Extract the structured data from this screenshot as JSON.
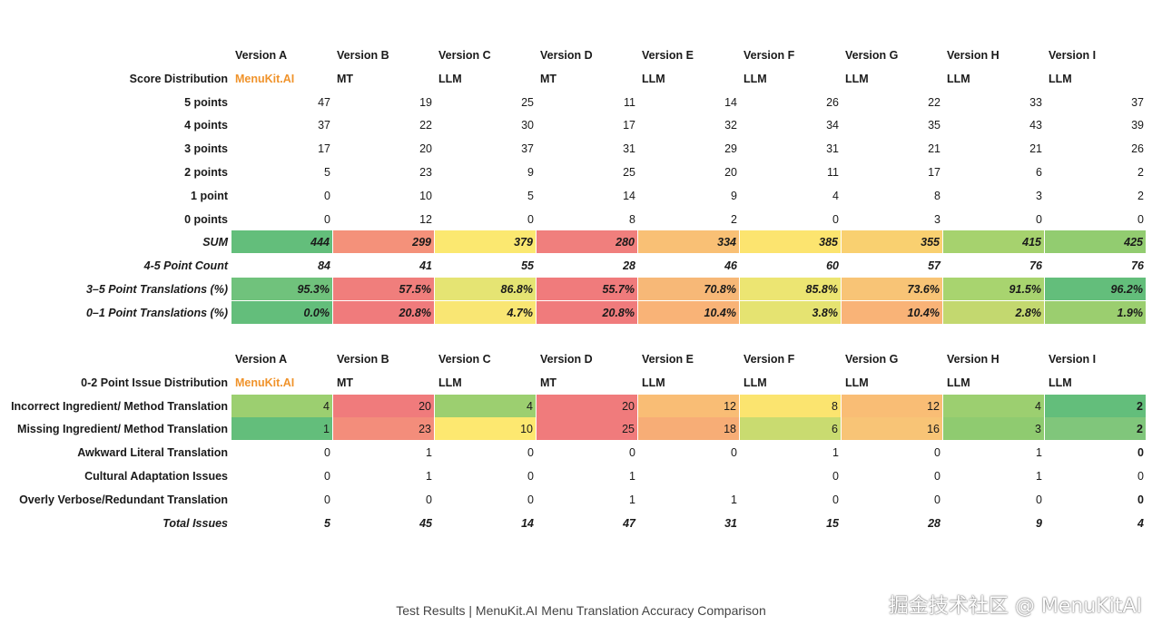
{
  "table1": {
    "versions": [
      "Version A",
      "Version B",
      "Version C",
      "Version D",
      "Version E",
      "Version F",
      "Version G",
      "Version H",
      "Version I"
    ],
    "types_label": "Score Distribution",
    "types": [
      "MenuKit.AI",
      "MT",
      "LLM",
      "MT",
      "LLM",
      "LLM",
      "LLM",
      "LLM",
      "LLM"
    ],
    "rows": [
      {
        "label": "5 points",
        "values": [
          "47",
          "19",
          "25",
          "11",
          "14",
          "26",
          "22",
          "33",
          "37"
        ]
      },
      {
        "label": "4 points",
        "values": [
          "37",
          "22",
          "30",
          "17",
          "32",
          "34",
          "35",
          "43",
          "39"
        ]
      },
      {
        "label": "3 points",
        "values": [
          "17",
          "20",
          "37",
          "31",
          "29",
          "31",
          "21",
          "21",
          "26"
        ]
      },
      {
        "label": "2 points",
        "values": [
          "5",
          "23",
          "9",
          "25",
          "20",
          "11",
          "17",
          "6",
          "2"
        ]
      },
      {
        "label": "1 point",
        "values": [
          "0",
          "10",
          "5",
          "14",
          "9",
          "4",
          "8",
          "3",
          "2"
        ]
      },
      {
        "label": "0 points",
        "values": [
          "0",
          "12",
          "0",
          "8",
          "2",
          "0",
          "3",
          "0",
          "0"
        ]
      },
      {
        "label": "SUM",
        "italic": true,
        "bold_values": true,
        "values": [
          "444",
          "299",
          "379",
          "280",
          "334",
          "385",
          "355",
          "415",
          "425"
        ],
        "colors": [
          "#63be7b",
          "#f4917a",
          "#fbe870",
          "#f07f7d",
          "#f9c075",
          "#fce46f",
          "#f9d070",
          "#a6d26e",
          "#92cc70"
        ]
      },
      {
        "label": "4-5 Point Count",
        "italic": true,
        "bold_values": true,
        "values": [
          "84",
          "41",
          "55",
          "28",
          "46",
          "60",
          "57",
          "76",
          "76"
        ]
      },
      {
        "label": "3–5 Point Translations (%)",
        "italic": true,
        "bold_values": true,
        "values": [
          "95.3%",
          "57.5%",
          "86.8%",
          "55.7%",
          "70.8%",
          "85.8%",
          "73.6%",
          "91.5%",
          "96.2%"
        ],
        "colors": [
          "#70c27c",
          "#f07e7c",
          "#e5e473",
          "#f07b7c",
          "#f7b877",
          "#ece572",
          "#f8c476",
          "#a8d46f",
          "#63be7b"
        ]
      },
      {
        "label": "0–1 Point Translations (%)",
        "italic": true,
        "bold_values": true,
        "values": [
          "0.0%",
          "20.8%",
          "4.7%",
          "20.8%",
          "10.4%",
          "3.8%",
          "10.4%",
          "2.8%",
          "1.9%"
        ],
        "colors": [
          "#63be7b",
          "#f07b7c",
          "#f9e673",
          "#f07b7c",
          "#f9b377",
          "#e5e371",
          "#f9b377",
          "#c3d86f",
          "#9bce6f"
        ]
      }
    ]
  },
  "table2": {
    "versions": [
      "Version A",
      "Version B",
      "Version C",
      "Version D",
      "Version E",
      "Version F",
      "Version G",
      "Version H",
      "Version I"
    ],
    "types_label": "0-2 Point Issue Distribution",
    "types": [
      "MenuKit.AI",
      "MT",
      "LLM",
      "MT",
      "LLM",
      "LLM",
      "LLM",
      "LLM",
      "LLM"
    ],
    "rows": [
      {
        "label": "Incorrect Ingredient/ Method Translation",
        "values": [
          "4",
          "20",
          "4",
          "20",
          "12",
          "8",
          "12",
          "4",
          "2"
        ],
        "colors": [
          "#9ccf70",
          "#f07b7c",
          "#9ccf70",
          "#f07b7c",
          "#f9bd75",
          "#fbe46f",
          "#f9bd75",
          "#9ccf70",
          "#63be7b"
        ],
        "last_bold": true
      },
      {
        "label": "Missing Ingredient/ Method Translation",
        "values": [
          "1",
          "23",
          "10",
          "25",
          "18",
          "6",
          "16",
          "3",
          "2"
        ],
        "colors": [
          "#63be7b",
          "#f38d7b",
          "#fde870",
          "#f07b7c",
          "#f7ad76",
          "#c9db70",
          "#f8c476",
          "#8fcb70",
          "#80c67b"
        ],
        "last_bold": true
      },
      {
        "label": "Awkward Literal Translation",
        "values": [
          "0",
          "1",
          "0",
          "0",
          "0",
          "1",
          "0",
          "1",
          "0"
        ],
        "last_bold": true
      },
      {
        "label": "Cultural Adaptation Issues",
        "values": [
          "0",
          "1",
          "0",
          "1",
          "",
          "0",
          "0",
          "1",
          "0"
        ]
      },
      {
        "label": "Overly Verbose/Redundant Translation",
        "values": [
          "0",
          "0",
          "0",
          "1",
          "1",
          "0",
          "0",
          "0",
          "0"
        ],
        "last_bold": true
      },
      {
        "label": "Total Issues",
        "italic": true,
        "bold_values": true,
        "values": [
          "5",
          "45",
          "14",
          "47",
          "31",
          "15",
          "28",
          "9",
          "4"
        ]
      }
    ]
  },
  "caption": "Test Results | MenuKit.AI Menu Translation Accuracy Comparison",
  "watermark": "掘金技术社区 @ MenuKitAI",
  "colors": {
    "brand": "#f0932b"
  }
}
